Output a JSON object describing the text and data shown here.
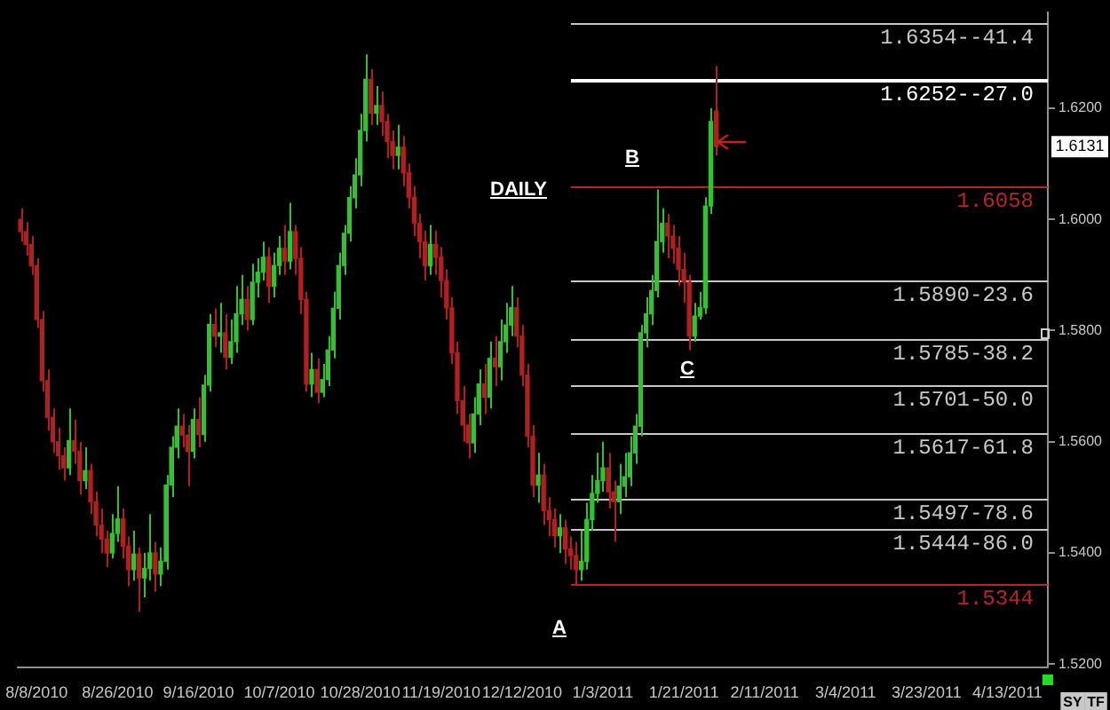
{
  "chart_data": {
    "type": "candlestick",
    "categories": [
      null,
      null,
      null,
      "8/8/2010",
      null,
      null,
      null,
      null,
      null,
      null,
      null,
      null,
      null,
      null,
      null,
      null,
      null,
      null,
      "8/26/2010",
      null,
      null,
      null,
      null,
      null,
      null,
      null,
      null,
      null,
      null,
      null,
      null,
      null,
      null,
      "9/16/2010",
      null,
      null,
      null,
      null,
      null,
      null,
      null,
      null,
      null,
      null,
      null,
      null,
      null,
      null,
      "10/7/2010",
      null,
      null,
      null,
      null,
      null,
      null,
      null,
      null,
      null,
      null,
      null,
      null,
      null,
      null,
      "10/28/2010",
      null,
      null,
      null,
      null,
      null,
      null,
      null,
      null,
      null,
      null,
      null,
      null,
      null,
      null,
      "11/19/2010",
      null,
      null,
      null,
      null,
      null,
      null,
      null,
      null,
      null,
      null,
      null,
      null,
      null,
      null,
      "12/12/2010",
      null,
      null,
      null,
      null,
      null,
      null,
      null,
      null,
      null,
      null,
      null,
      null,
      null,
      null,
      "1/3/2011",
      null,
      null,
      null,
      null,
      null,
      null,
      null,
      null,
      null,
      null,
      null,
      null,
      null,
      null,
      "1/21/2011",
      null,
      null,
      null,
      null,
      null,
      null,
      null,
      null,
      null,
      null,
      null,
      null,
      null,
      null,
      "2/11/2011",
      null,
      null,
      null,
      null,
      null,
      null,
      null,
      null,
      null,
      null,
      null,
      null,
      null,
      null,
      "3/4/2011",
      null,
      null,
      null,
      null,
      null,
      null,
      null,
      null,
      null,
      null,
      null,
      null,
      null,
      null,
      "3/23/2011",
      null,
      null,
      null,
      null,
      null,
      null,
      null,
      null,
      null,
      null,
      null,
      null,
      null,
      null,
      "4/13/2011",
      null,
      null,
      null,
      null,
      null,
      null,
      null
    ],
    "ohlc": [
      [
        1.6,
        1.602,
        1.596,
        1.5978
      ],
      [
        1.5978,
        1.5995,
        1.5935,
        1.5955
      ],
      [
        1.5955,
        1.597,
        1.59,
        1.5917
      ],
      [
        1.5917,
        1.593,
        1.5805,
        1.582
      ],
      [
        1.582,
        1.5835,
        1.569,
        1.571
      ],
      [
        1.571,
        1.573,
        1.562,
        1.5644
      ],
      [
        1.5644,
        1.566,
        1.558,
        1.56
      ],
      [
        1.56,
        1.5625,
        1.555,
        1.5575
      ],
      [
        1.5575,
        1.559,
        1.553,
        1.5553
      ],
      [
        1.5553,
        1.566,
        1.554,
        1.5602
      ],
      [
        1.5602,
        1.564,
        1.556,
        1.5583
      ],
      [
        1.5583,
        1.56,
        1.5505,
        1.553
      ],
      [
        1.553,
        1.559,
        1.5515,
        1.5548
      ],
      [
        1.5548,
        1.556,
        1.547,
        1.5492
      ],
      [
        1.5492,
        1.551,
        1.543,
        1.545
      ],
      [
        1.545,
        1.548,
        1.54,
        1.5425
      ],
      [
        1.5425,
        1.544,
        1.5375,
        1.54
      ],
      [
        1.54,
        1.547,
        1.539,
        1.5435
      ],
      [
        1.5435,
        1.552,
        1.542,
        1.5461
      ],
      [
        1.5461,
        1.548,
        1.539,
        1.5412
      ],
      [
        1.5412,
        1.543,
        1.534,
        1.537
      ],
      [
        1.537,
        1.544,
        1.535,
        1.5398
      ],
      [
        1.5398,
        1.541,
        1.5294,
        1.5355
      ],
      [
        1.5355,
        1.54,
        1.532,
        1.5372
      ],
      [
        1.5372,
        1.547,
        1.535,
        1.54
      ],
      [
        1.54,
        1.542,
        1.533,
        1.5362
      ],
      [
        1.5362,
        1.541,
        1.534,
        1.5385
      ],
      [
        1.5385,
        1.554,
        1.537,
        1.5522
      ],
      [
        1.5522,
        1.561,
        1.55,
        1.559
      ],
      [
        1.559,
        1.566,
        1.557,
        1.5628
      ],
      [
        1.5628,
        1.565,
        1.559,
        1.5612
      ],
      [
        1.5612,
        1.563,
        1.552,
        1.5583
      ],
      [
        1.5583,
        1.566,
        1.557,
        1.564
      ],
      [
        1.564,
        1.568,
        1.559,
        1.5613
      ],
      [
        1.5613,
        1.572,
        1.56,
        1.5702
      ],
      [
        1.5702,
        1.583,
        1.569,
        1.5811
      ],
      [
        1.5811,
        1.584,
        1.577,
        1.579
      ],
      [
        1.579,
        1.585,
        1.576,
        1.5796
      ],
      [
        1.5796,
        1.583,
        1.573,
        1.5752
      ],
      [
        1.5752,
        1.582,
        1.574,
        1.578
      ],
      [
        1.578,
        1.588,
        1.576,
        1.583
      ],
      [
        1.583,
        1.59,
        1.581,
        1.5856
      ],
      [
        1.5856,
        1.588,
        1.58,
        1.582
      ],
      [
        1.582,
        1.592,
        1.581,
        1.5887
      ],
      [
        1.5887,
        1.593,
        1.586,
        1.5905
      ],
      [
        1.5905,
        1.596,
        1.589,
        1.5932
      ],
      [
        1.5932,
        1.595,
        1.585,
        1.588
      ],
      [
        1.588,
        1.594,
        1.586,
        1.5917
      ],
      [
        1.5917,
        1.597,
        1.59,
        1.5948
      ],
      [
        1.5948,
        1.599,
        1.59,
        1.5925
      ],
      [
        1.5925,
        1.603,
        1.591,
        1.5978
      ],
      [
        1.5978,
        1.599,
        1.59,
        1.593
      ],
      [
        1.593,
        1.595,
        1.583,
        1.5856
      ],
      [
        1.5856,
        1.587,
        1.569,
        1.5704
      ],
      [
        1.5704,
        1.576,
        1.568,
        1.573
      ],
      [
        1.573,
        1.575,
        1.567,
        1.5689
      ],
      [
        1.5689,
        1.574,
        1.568,
        1.5712
      ],
      [
        1.5712,
        1.579,
        1.57,
        1.5765
      ],
      [
        1.5765,
        1.587,
        1.575,
        1.584
      ],
      [
        1.584,
        1.594,
        1.582,
        1.5917
      ],
      [
        1.5917,
        1.599,
        1.59,
        1.5975
      ],
      [
        1.5975,
        1.606,
        1.596,
        1.6039
      ],
      [
        1.6039,
        1.611,
        1.602,
        1.608
      ],
      [
        1.608,
        1.619,
        1.606,
        1.616
      ],
      [
        1.616,
        1.6297,
        1.614,
        1.6252
      ],
      [
        1.6252,
        1.627,
        1.617,
        1.6191
      ],
      [
        1.6191,
        1.624,
        1.617,
        1.6205
      ],
      [
        1.6205,
        1.623,
        1.615,
        1.6176
      ],
      [
        1.6176,
        1.619,
        1.611,
        1.614
      ],
      [
        1.614,
        1.616,
        1.609,
        1.6115
      ],
      [
        1.6115,
        1.617,
        1.609,
        1.613
      ],
      [
        1.613,
        1.615,
        1.606,
        1.6084
      ],
      [
        1.6084,
        1.61,
        1.602,
        1.604
      ],
      [
        1.604,
        1.606,
        1.597,
        1.5993
      ],
      [
        1.5993,
        1.601,
        1.593,
        1.596
      ],
      [
        1.596,
        1.598,
        1.589,
        1.5917
      ],
      [
        1.5917,
        1.599,
        1.59,
        1.5955
      ],
      [
        1.5955,
        1.598,
        1.59,
        1.5932
      ],
      [
        1.5932,
        1.595,
        1.586,
        1.589
      ],
      [
        1.589,
        1.591,
        1.582,
        1.5841
      ],
      [
        1.5841,
        1.586,
        1.574,
        1.576
      ],
      [
        1.576,
        1.578,
        1.565,
        1.5674
      ],
      [
        1.5674,
        1.57,
        1.56,
        1.563
      ],
      [
        1.563,
        1.565,
        1.557,
        1.5598
      ],
      [
        1.5598,
        1.568,
        1.558,
        1.565
      ],
      [
        1.565,
        1.573,
        1.563,
        1.5704
      ],
      [
        1.5704,
        1.574,
        1.565,
        1.568
      ],
      [
        1.568,
        1.578,
        1.566,
        1.575
      ],
      [
        1.575,
        1.579,
        1.57,
        1.5735
      ],
      [
        1.5735,
        1.582,
        1.571,
        1.578
      ],
      [
        1.578,
        1.585,
        1.576,
        1.581
      ],
      [
        1.581,
        1.588,
        1.579,
        1.5841
      ],
      [
        1.5841,
        1.586,
        1.577,
        1.579
      ],
      [
        1.579,
        1.581,
        1.57,
        1.572
      ],
      [
        1.572,
        1.574,
        1.559,
        1.561
      ],
      [
        1.561,
        1.563,
        1.55,
        1.5522
      ],
      [
        1.5522,
        1.558,
        1.549,
        1.554
      ],
      [
        1.554,
        1.556,
        1.545,
        1.5476
      ],
      [
        1.5476,
        1.55,
        1.543,
        1.546
      ],
      [
        1.546,
        1.548,
        1.541,
        1.5431
      ],
      [
        1.5431,
        1.547,
        1.54,
        1.5445
      ],
      [
        1.5445,
        1.546,
        1.538,
        1.5407
      ],
      [
        1.5407,
        1.543,
        1.537,
        1.5395
      ],
      [
        1.5395,
        1.542,
        1.5344,
        1.537
      ],
      [
        1.537,
        1.544,
        1.535,
        1.5385
      ],
      [
        1.5385,
        1.549,
        1.537,
        1.546
      ],
      [
        1.546,
        1.554,
        1.544,
        1.5507
      ],
      [
        1.5507,
        1.558,
        1.549,
        1.553
      ],
      [
        1.553,
        1.56,
        1.551,
        1.5553
      ],
      [
        1.5553,
        1.558,
        1.548,
        1.551
      ],
      [
        1.551,
        1.553,
        1.542,
        1.5492
      ],
      [
        1.5492,
        1.556,
        1.547,
        1.552
      ],
      [
        1.552,
        1.558,
        1.55,
        1.5537
      ],
      [
        1.5537,
        1.561,
        1.552,
        1.558
      ],
      [
        1.558,
        1.565,
        1.556,
        1.5628
      ],
      [
        1.5628,
        1.581,
        1.561,
        1.5796
      ],
      [
        1.5796,
        1.586,
        1.577,
        1.583
      ],
      [
        1.583,
        1.59,
        1.581,
        1.5872
      ],
      [
        1.5872,
        1.6054,
        1.586,
        1.596
      ],
      [
        1.596,
        1.602,
        1.594,
        1.5993
      ],
      [
        1.5993,
        1.601,
        1.593,
        1.597
      ],
      [
        1.597,
        1.599,
        1.592,
        1.5948
      ],
      [
        1.5948,
        1.597,
        1.588,
        1.591
      ],
      [
        1.591,
        1.594,
        1.585,
        1.5887
      ],
      [
        1.5887,
        1.59,
        1.5765,
        1.579
      ],
      [
        1.579,
        1.585,
        1.578,
        1.5826
      ],
      [
        1.5826,
        1.587,
        1.582,
        1.5841
      ],
      [
        1.5841,
        1.604,
        1.583,
        1.6024
      ],
      [
        1.6024,
        1.62,
        1.601,
        1.6176
      ],
      [
        1.6195,
        1.6276,
        1.6115,
        1.6131
      ],
      null,
      null,
      null,
      null,
      null,
      null,
      null,
      null,
      null,
      null,
      null,
      null,
      null,
      null,
      null,
      null,
      null,
      null,
      null,
      null,
      null,
      null,
      null,
      null,
      null,
      null,
      null,
      null,
      null,
      null,
      null,
      null,
      null,
      null,
      null,
      null,
      null,
      null,
      null,
      null,
      null,
      null,
      null,
      null,
      null,
      null,
      null,
      null,
      null,
      null,
      null,
      null,
      null,
      null,
      null,
      null,
      null,
      null,
      null,
      null,
      null
    ],
    "colors": [
      "#b02020",
      "#b02020",
      "#b02020",
      "#b02020",
      "#b02020",
      "#b02020",
      "#b02020",
      "#b02020",
      "#b02020",
      "#33c033",
      "#b02020",
      "#b02020",
      "#33c033",
      "#b02020",
      "#b02020",
      "#b02020",
      "#b02020",
      "#33c033",
      "#33c033",
      "#b02020",
      "#b02020",
      "#33c033",
      "#b02020",
      "#33c033",
      "#33c033",
      "#b02020",
      "#33c033",
      "#33c033",
      "#33c033",
      "#33c033",
      "#b02020",
      "#b02020",
      "#33c033",
      "#b02020",
      "#33c033",
      "#33c033",
      "#b02020",
      "#33c033",
      "#b02020",
      "#33c033",
      "#33c033",
      "#33c033",
      "#b02020",
      "#33c033",
      "#33c033",
      "#33c033",
      "#b02020",
      "#33c033",
      "#33c033",
      "#b02020",
      "#33c033",
      "#b02020",
      "#b02020",
      "#b02020",
      "#33c033",
      "#b02020",
      "#33c033",
      "#33c033",
      "#33c033",
      "#33c033",
      "#33c033",
      "#33c033",
      "#33c033",
      "#33c033",
      "#33c033",
      "#b02020",
      "#33c033",
      "#b02020",
      "#b02020",
      "#b02020",
      "#33c033",
      "#b02020",
      "#b02020",
      "#b02020",
      "#b02020",
      "#b02020",
      "#33c033",
      "#b02020",
      "#b02020",
      "#b02020",
      "#b02020",
      "#b02020",
      "#b02020",
      "#b02020",
      "#33c033",
      "#33c033",
      "#b02020",
      "#33c033",
      "#b02020",
      "#33c033",
      "#33c033",
      "#33c033",
      "#b02020",
      "#b02020",
      "#b02020",
      "#b02020",
      "#33c033",
      "#b02020",
      "#b02020",
      "#b02020",
      "#33c033",
      "#b02020",
      "#b02020",
      "#b02020",
      "#33c033",
      "#33c033",
      "#33c033",
      "#33c033",
      "#33c033",
      "#b02020",
      "#b02020",
      "#33c033",
      "#33c033",
      "#33c033",
      "#33c033",
      "#33c033",
      "#33c033",
      "#33c033",
      "#33c033",
      "#33c033",
      "#b02020",
      "#b02020",
      "#b02020",
      "#b02020",
      "#b02020",
      "#33c033",
      "#33c033",
      "#33c033",
      "#33c033",
      "#b02020",
      null,
      null,
      null,
      null,
      null,
      null,
      null,
      null,
      null,
      null,
      null,
      null,
      null,
      null,
      null,
      null,
      null,
      null,
      null,
      null,
      null,
      null,
      null,
      null,
      null,
      null,
      null,
      null,
      null,
      null,
      null,
      null,
      null,
      null,
      null,
      null,
      null,
      null,
      null,
      null,
      null,
      null,
      null,
      null,
      null,
      null,
      null,
      null,
      null,
      null,
      null,
      null,
      null,
      null,
      null,
      null,
      null,
      null,
      null,
      null,
      null
    ],
    "ylim": [
      1.5194,
      1.6373
    ],
    "yticks": [
      {
        "value": 1.52,
        "label": "1.5200"
      },
      {
        "value": 1.54,
        "label": "1.5400"
      },
      {
        "value": 1.56,
        "label": "1.5600"
      },
      {
        "value": 1.58,
        "label": "1.5800"
      },
      {
        "value": 1.6,
        "label": "1.6000"
      },
      {
        "value": 1.62,
        "label": "1.6200"
      }
    ],
    "ref_lines": [
      {
        "axis": "y",
        "value": 1.6354,
        "label": "1.6354--41.4",
        "color": "#c8c8c8"
      },
      {
        "axis": "y",
        "value": 1.6252,
        "label": "1.6252--27.0",
        "color": "#ffffff"
      },
      {
        "axis": "y",
        "value": 1.6058,
        "label": "1.6058",
        "color": "#b02828"
      },
      {
        "axis": "y",
        "value": 1.589,
        "label": "1.5890-23.6",
        "color": "#c8c8c8"
      },
      {
        "axis": "y",
        "value": 1.5785,
        "label": "1.5785-38.2",
        "color": "#c8c8c8"
      },
      {
        "axis": "y",
        "value": 1.5701,
        "label": "1.5701-50.0",
        "color": "#c8c8c8"
      },
      {
        "axis": "y",
        "value": 1.5617,
        "label": "1.5617-61.8",
        "color": "#c8c8c8"
      },
      {
        "axis": "y",
        "value": 1.5497,
        "label": "1.5497-78.6",
        "color": "#c8c8c8"
      },
      {
        "axis": "y",
        "value": 1.5444,
        "label": "1.5444-86.0",
        "color": "#c8c8c8"
      },
      {
        "axis": "y",
        "value": 1.5344,
        "label": "1.5344",
        "color": "#b02828"
      }
    ],
    "annotations": [
      "DAILY",
      "B",
      "C",
      "A",
      {
        "text": "1.6131",
        "y": 1.6131
      },
      "SY",
      "TF"
    ]
  }
}
